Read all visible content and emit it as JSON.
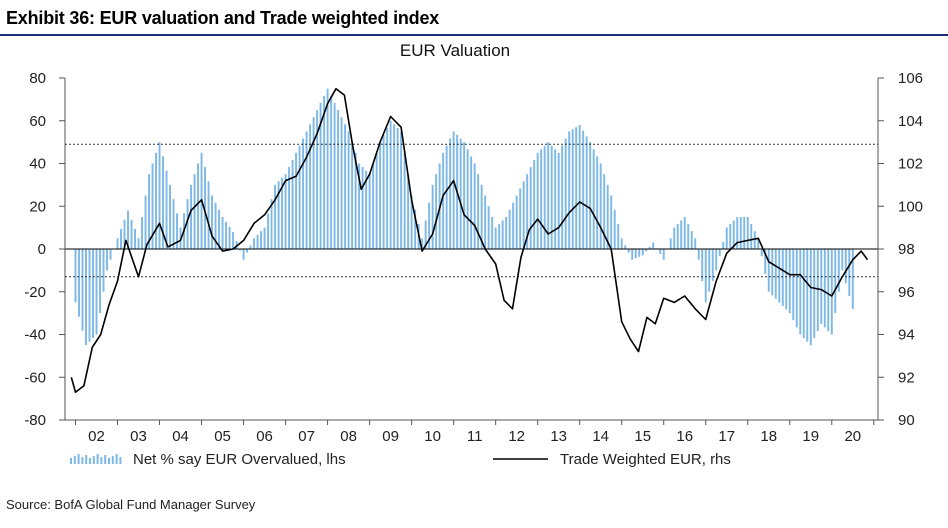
{
  "exhibit": {
    "title": "Exhibit 36: EUR valuation and Trade weighted index",
    "source": "Source: BofA Global Fund Manager Survey"
  },
  "colors": {
    "bars": "#7db8e8",
    "line": "#000000",
    "rule": "#1f2d7a",
    "axis": "#555555"
  },
  "chart_data": {
    "type": "bar+line",
    "title": "EUR Valuation",
    "x_axis": {
      "range": [
        2001.75,
        2021.1
      ],
      "tick_labels": [
        "02",
        "03",
        "04",
        "05",
        "06",
        "07",
        "08",
        "09",
        "10",
        "11",
        "12",
        "13",
        "14",
        "15",
        "16",
        "17",
        "18",
        "19",
        "20"
      ]
    },
    "y_left": {
      "range": [
        -80,
        80
      ],
      "ticks": [
        "-80",
        "-60",
        "-40",
        "-20",
        "0",
        "20",
        "40",
        "60",
        "80"
      ]
    },
    "y_right": {
      "range": [
        90,
        106
      ],
      "ticks": [
        "90",
        "92",
        "94",
        "96",
        "98",
        "100",
        "102",
        "104",
        "106"
      ]
    },
    "reference_lines_lhs": [
      49,
      -13
    ],
    "legend": [
      "Net % say EUR Overvalued, lhs",
      "Trade Weighted EUR, rhs"
    ],
    "series": [
      {
        "name": "Net % say EUR Overvalued, lhs",
        "type": "bar",
        "axis": "left",
        "points": [
          [
            2002.0,
            -25
          ],
          [
            2002.25,
            -45
          ],
          [
            2002.5,
            -40
          ],
          [
            2002.75,
            -10
          ],
          [
            2003.0,
            5
          ],
          [
            2003.25,
            18
          ],
          [
            2003.5,
            5
          ],
          [
            2003.75,
            35
          ],
          [
            2004.0,
            50
          ],
          [
            2004.25,
            30
          ],
          [
            2004.5,
            10
          ],
          [
            2004.75,
            30
          ],
          [
            2005.0,
            45
          ],
          [
            2005.25,
            25
          ],
          [
            2005.5,
            15
          ],
          [
            2005.75,
            8
          ],
          [
            2006.0,
            -5
          ],
          [
            2006.25,
            5
          ],
          [
            2006.5,
            10
          ],
          [
            2006.75,
            30
          ],
          [
            2007.0,
            35
          ],
          [
            2007.25,
            45
          ],
          [
            2007.5,
            55
          ],
          [
            2007.75,
            65
          ],
          [
            2008.0,
            75
          ],
          [
            2008.25,
            65
          ],
          [
            2008.5,
            55
          ],
          [
            2008.75,
            40
          ],
          [
            2009.0,
            35
          ],
          [
            2009.25,
            50
          ],
          [
            2009.5,
            60
          ],
          [
            2009.75,
            55
          ],
          [
            2010.0,
            25
          ],
          [
            2010.25,
            5
          ],
          [
            2010.5,
            30
          ],
          [
            2010.75,
            45
          ],
          [
            2011.0,
            55
          ],
          [
            2011.25,
            50
          ],
          [
            2011.5,
            40
          ],
          [
            2011.75,
            25
          ],
          [
            2012.0,
            10
          ],
          [
            2012.25,
            15
          ],
          [
            2012.5,
            25
          ],
          [
            2012.75,
            35
          ],
          [
            2013.0,
            45
          ],
          [
            2013.25,
            50
          ],
          [
            2013.5,
            45
          ],
          [
            2013.75,
            55
          ],
          [
            2014.0,
            58
          ],
          [
            2014.25,
            50
          ],
          [
            2014.5,
            40
          ],
          [
            2014.75,
            25
          ],
          [
            2015.0,
            5
          ],
          [
            2015.25,
            -5
          ],
          [
            2015.5,
            -3
          ],
          [
            2015.75,
            3
          ],
          [
            2016.0,
            -5
          ],
          [
            2016.25,
            10
          ],
          [
            2016.5,
            15
          ],
          [
            2016.75,
            5
          ],
          [
            2017.0,
            -25
          ],
          [
            2017.25,
            -10
          ],
          [
            2017.5,
            10
          ],
          [
            2017.75,
            15
          ],
          [
            2018.0,
            15
          ],
          [
            2018.25,
            5
          ],
          [
            2018.5,
            -20
          ],
          [
            2018.75,
            -25
          ],
          [
            2019.0,
            -30
          ],
          [
            2019.25,
            -40
          ],
          [
            2019.5,
            -45
          ],
          [
            2019.75,
            -35
          ],
          [
            2020.0,
            -40
          ],
          [
            2020.25,
            -10
          ],
          [
            2020.5,
            -28
          ]
        ]
      },
      {
        "name": "Trade Weighted EUR, rhs",
        "type": "line",
        "axis": "right",
        "points": [
          [
            2001.9,
            92.0
          ],
          [
            2002.0,
            91.3
          ],
          [
            2002.2,
            91.6
          ],
          [
            2002.4,
            93.4
          ],
          [
            2002.6,
            94.0
          ],
          [
            2002.8,
            95.4
          ],
          [
            2003.0,
            96.5
          ],
          [
            2003.2,
            98.4
          ],
          [
            2003.5,
            96.7
          ],
          [
            2003.7,
            98.2
          ],
          [
            2004.0,
            99.2
          ],
          [
            2004.2,
            98.1
          ],
          [
            2004.5,
            98.4
          ],
          [
            2004.75,
            99.8
          ],
          [
            2005.0,
            100.3
          ],
          [
            2005.25,
            98.6
          ],
          [
            2005.5,
            97.9
          ],
          [
            2005.75,
            98.0
          ],
          [
            2006.0,
            98.4
          ],
          [
            2006.25,
            99.2
          ],
          [
            2006.5,
            99.6
          ],
          [
            2006.75,
            100.3
          ],
          [
            2007.0,
            101.2
          ],
          [
            2007.25,
            101.4
          ],
          [
            2007.5,
            102.3
          ],
          [
            2007.75,
            103.4
          ],
          [
            2008.0,
            104.8
          ],
          [
            2008.2,
            105.5
          ],
          [
            2008.4,
            105.2
          ],
          [
            2008.6,
            102.8
          ],
          [
            2008.8,
            100.8
          ],
          [
            2009.0,
            101.5
          ],
          [
            2009.25,
            103.0
          ],
          [
            2009.5,
            104.2
          ],
          [
            2009.75,
            103.7
          ],
          [
            2010.0,
            100.3
          ],
          [
            2010.25,
            97.9
          ],
          [
            2010.5,
            98.7
          ],
          [
            2010.75,
            100.5
          ],
          [
            2011.0,
            101.2
          ],
          [
            2011.25,
            99.6
          ],
          [
            2011.5,
            99.1
          ],
          [
            2011.75,
            98.0
          ],
          [
            2012.0,
            97.3
          ],
          [
            2012.2,
            95.6
          ],
          [
            2012.4,
            95.2
          ],
          [
            2012.6,
            97.6
          ],
          [
            2012.8,
            98.9
          ],
          [
            2013.0,
            99.4
          ],
          [
            2013.25,
            98.7
          ],
          [
            2013.5,
            99.0
          ],
          [
            2013.75,
            99.7
          ],
          [
            2014.0,
            100.2
          ],
          [
            2014.25,
            99.9
          ],
          [
            2014.5,
            99.0
          ],
          [
            2014.75,
            98.0
          ],
          [
            2015.0,
            94.6
          ],
          [
            2015.2,
            93.8
          ],
          [
            2015.4,
            93.2
          ],
          [
            2015.6,
            94.8
          ],
          [
            2015.8,
            94.5
          ],
          [
            2016.0,
            95.7
          ],
          [
            2016.25,
            95.5
          ],
          [
            2016.5,
            95.8
          ],
          [
            2016.75,
            95.2
          ],
          [
            2017.0,
            94.7
          ],
          [
            2017.25,
            96.5
          ],
          [
            2017.5,
            97.8
          ],
          [
            2017.75,
            98.3
          ],
          [
            2018.0,
            98.4
          ],
          [
            2018.25,
            98.5
          ],
          [
            2018.5,
            97.4
          ],
          [
            2018.75,
            97.1
          ],
          [
            2019.0,
            96.8
          ],
          [
            2019.25,
            96.8
          ],
          [
            2019.5,
            96.2
          ],
          [
            2019.75,
            96.1
          ],
          [
            2020.0,
            95.8
          ],
          [
            2020.25,
            96.7
          ],
          [
            2020.5,
            97.5
          ],
          [
            2020.7,
            97.9
          ],
          [
            2020.85,
            97.5
          ]
        ]
      }
    ]
  }
}
